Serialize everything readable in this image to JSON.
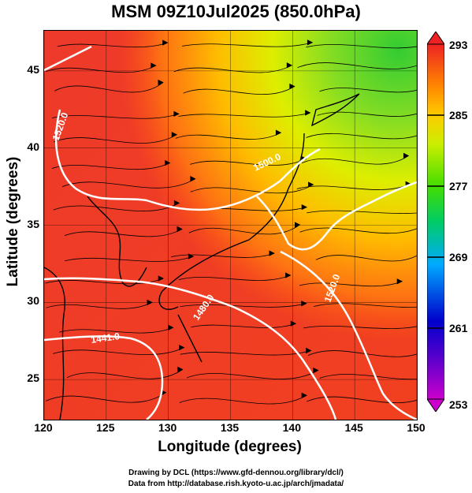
{
  "title": "MSM 09Z10Jul2025 (850.0hPa)",
  "axes": {
    "xlabel": "Longitude (degrees)",
    "ylabel": "Latitude  (degrees)",
    "xticks": [
      "120",
      "125",
      "130",
      "135",
      "140",
      "145",
      "150"
    ],
    "yticks": [
      "25",
      "30",
      "35",
      "40",
      "45"
    ],
    "xlim": [
      120,
      150
    ],
    "ylim": [
      22.4,
      47.6
    ]
  },
  "colorbar": {
    "ticks": [
      "293",
      "285",
      "277",
      "269",
      "261",
      "253"
    ],
    "range": [
      253,
      293
    ],
    "colors": [
      "#cc00cc",
      "#0000cc",
      "#00aaff",
      "#00cc66",
      "#44dd00",
      "#ccee00",
      "#ffcc00",
      "#ff8800",
      "#ff3300",
      "#ee2222"
    ]
  },
  "contour_labels": [
    "1520.0",
    "1500.0",
    "1480.0",
    "1441.0",
    "1520.0"
  ],
  "credits": {
    "line1": "Drawing by DCL (https://www.gfd-dennou.org/library/dcl/)",
    "line2": "Data from http://database.rish.kyoto-u.ac.jp/arch/jmadata/"
  }
}
